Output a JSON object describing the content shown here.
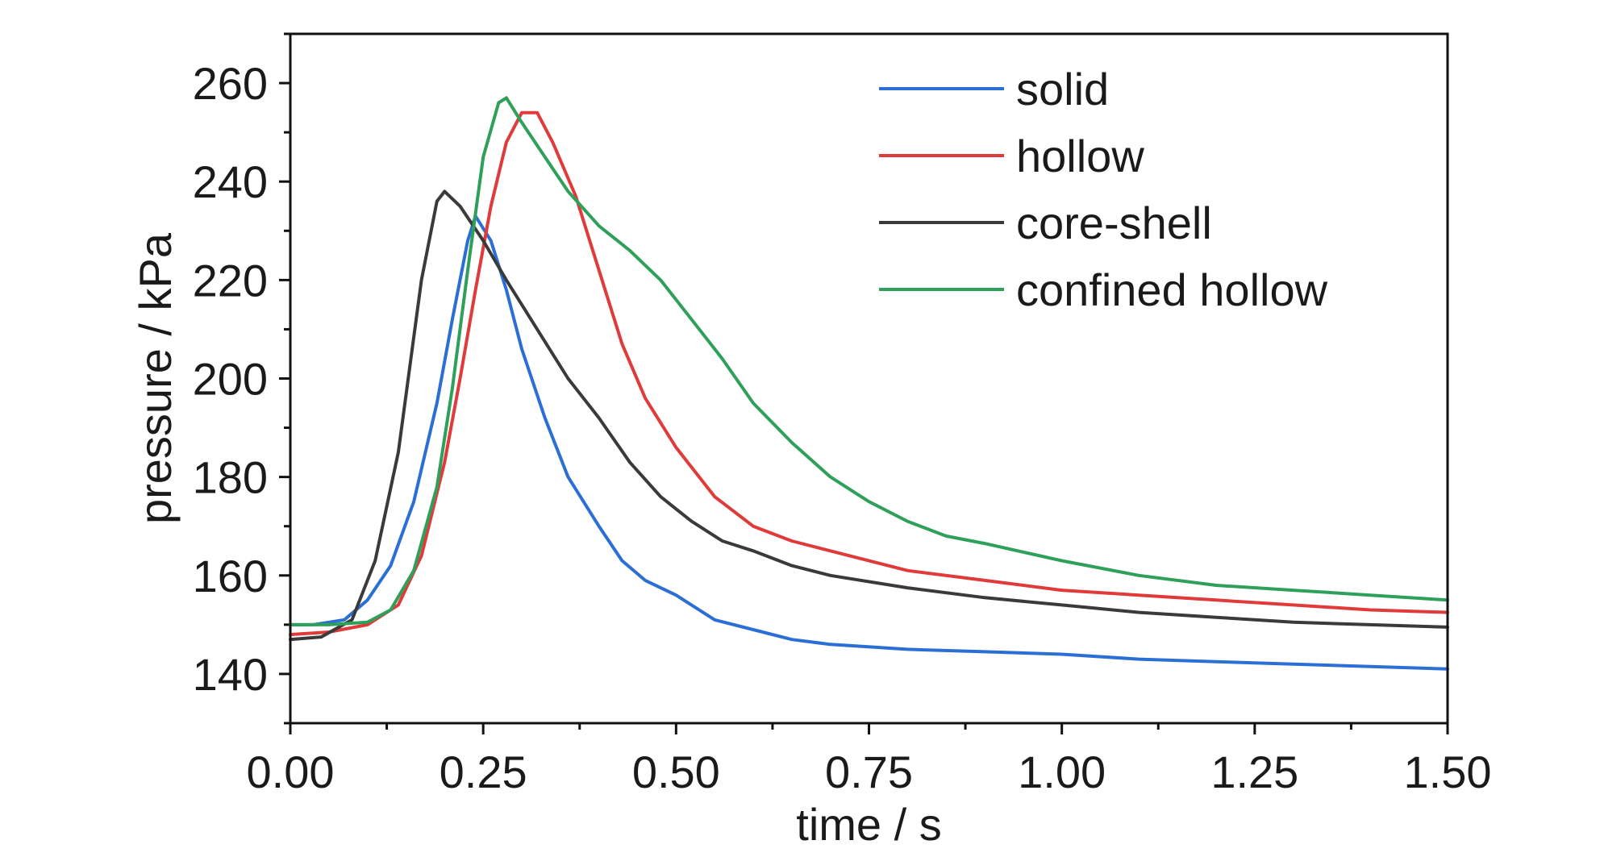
{
  "chart_data": {
    "type": "line",
    "title": "",
    "xlabel": "time / s",
    "ylabel": "pressure / kPa",
    "xlim": [
      0,
      1.5
    ],
    "ylim": [
      130,
      270
    ],
    "xticks": [
      0,
      0.25,
      0.5,
      0.75,
      1.0,
      1.25,
      1.5
    ],
    "xtick_labels": [
      "0.00",
      "0.25",
      "0.50",
      "0.75",
      "1.00",
      "1.25",
      "1.50"
    ],
    "yticks": [
      140,
      160,
      180,
      200,
      220,
      240,
      260
    ],
    "ytick_labels": [
      "140",
      "160",
      "180",
      "200",
      "220",
      "240",
      "260"
    ],
    "grid": false,
    "legend_position": "top-right",
    "series": [
      {
        "name": "solid",
        "color": "#2b6fd6",
        "points": [
          [
            0.0,
            150
          ],
          [
            0.03,
            150
          ],
          [
            0.07,
            151
          ],
          [
            0.1,
            155
          ],
          [
            0.13,
            162
          ],
          [
            0.16,
            175
          ],
          [
            0.19,
            195
          ],
          [
            0.21,
            212
          ],
          [
            0.23,
            228
          ],
          [
            0.24,
            233
          ],
          [
            0.26,
            228
          ],
          [
            0.28,
            218
          ],
          [
            0.3,
            206
          ],
          [
            0.33,
            192
          ],
          [
            0.36,
            180
          ],
          [
            0.4,
            170
          ],
          [
            0.43,
            163
          ],
          [
            0.46,
            159
          ],
          [
            0.5,
            156
          ],
          [
            0.55,
            151
          ],
          [
            0.6,
            149
          ],
          [
            0.65,
            147
          ],
          [
            0.7,
            146
          ],
          [
            0.8,
            145
          ],
          [
            0.9,
            144.5
          ],
          [
            1.0,
            144
          ],
          [
            1.1,
            143
          ],
          [
            1.2,
            142.5
          ],
          [
            1.3,
            142
          ],
          [
            1.4,
            141.5
          ],
          [
            1.5,
            141
          ]
        ]
      },
      {
        "name": "hollow",
        "color": "#e03a3a",
        "points": [
          [
            0.0,
            148
          ],
          [
            0.05,
            148.5
          ],
          [
            0.1,
            150
          ],
          [
            0.14,
            154
          ],
          [
            0.17,
            164
          ],
          [
            0.2,
            183
          ],
          [
            0.22,
            200
          ],
          [
            0.24,
            218
          ],
          [
            0.26,
            235
          ],
          [
            0.28,
            248
          ],
          [
            0.3,
            254
          ],
          [
            0.32,
            254
          ],
          [
            0.34,
            248
          ],
          [
            0.37,
            237
          ],
          [
            0.4,
            222
          ],
          [
            0.43,
            207
          ],
          [
            0.46,
            196
          ],
          [
            0.5,
            186
          ],
          [
            0.55,
            176
          ],
          [
            0.6,
            170
          ],
          [
            0.65,
            167
          ],
          [
            0.7,
            165
          ],
          [
            0.8,
            161
          ],
          [
            0.9,
            159
          ],
          [
            1.0,
            157
          ],
          [
            1.1,
            156
          ],
          [
            1.2,
            155
          ],
          [
            1.3,
            154
          ],
          [
            1.4,
            153
          ],
          [
            1.5,
            152.5
          ]
        ]
      },
      {
        "name": "core-shell",
        "color": "#3a3a3a",
        "points": [
          [
            0.0,
            147
          ],
          [
            0.04,
            147.5
          ],
          [
            0.08,
            151
          ],
          [
            0.11,
            163
          ],
          [
            0.14,
            185
          ],
          [
            0.17,
            220
          ],
          [
            0.19,
            236
          ],
          [
            0.2,
            238
          ],
          [
            0.22,
            235
          ],
          [
            0.25,
            228
          ],
          [
            0.28,
            220
          ],
          [
            0.32,
            210
          ],
          [
            0.36,
            200
          ],
          [
            0.4,
            192
          ],
          [
            0.44,
            183
          ],
          [
            0.48,
            176
          ],
          [
            0.52,
            171
          ],
          [
            0.56,
            167
          ],
          [
            0.6,
            165
          ],
          [
            0.65,
            162
          ],
          [
            0.7,
            160
          ],
          [
            0.8,
            157.5
          ],
          [
            0.9,
            155.5
          ],
          [
            1.0,
            154
          ],
          [
            1.1,
            152.5
          ],
          [
            1.2,
            151.5
          ],
          [
            1.3,
            150.5
          ],
          [
            1.4,
            150
          ],
          [
            1.5,
            149.5
          ]
        ]
      },
      {
        "name": "confined hollow",
        "color": "#2fa05a",
        "points": [
          [
            0.0,
            150
          ],
          [
            0.05,
            150
          ],
          [
            0.1,
            150.5
          ],
          [
            0.13,
            153
          ],
          [
            0.16,
            161
          ],
          [
            0.19,
            178
          ],
          [
            0.21,
            198
          ],
          [
            0.23,
            222
          ],
          [
            0.25,
            245
          ],
          [
            0.27,
            256
          ],
          [
            0.28,
            257
          ],
          [
            0.3,
            252
          ],
          [
            0.33,
            245
          ],
          [
            0.36,
            238
          ],
          [
            0.4,
            231
          ],
          [
            0.44,
            226
          ],
          [
            0.48,
            220
          ],
          [
            0.52,
            212
          ],
          [
            0.56,
            204
          ],
          [
            0.6,
            195
          ],
          [
            0.65,
            187
          ],
          [
            0.7,
            180
          ],
          [
            0.75,
            175
          ],
          [
            0.8,
            171
          ],
          [
            0.85,
            168
          ],
          [
            0.9,
            166.5
          ],
          [
            1.0,
            163
          ],
          [
            1.1,
            160
          ],
          [
            1.2,
            158
          ],
          [
            1.3,
            157
          ],
          [
            1.4,
            156
          ],
          [
            1.5,
            155
          ]
        ]
      }
    ]
  }
}
